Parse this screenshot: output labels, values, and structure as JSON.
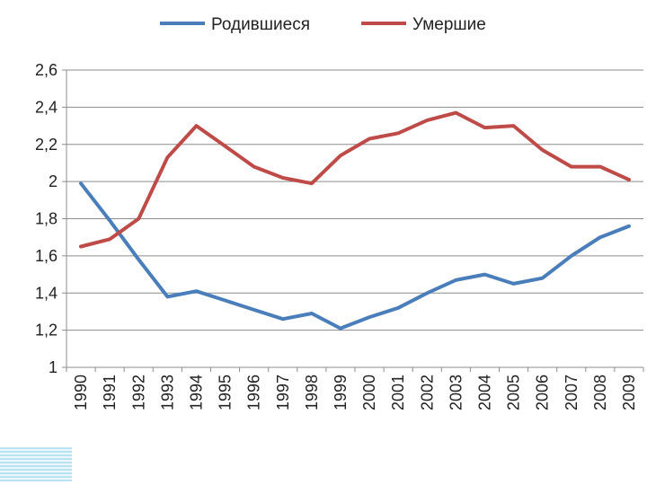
{
  "chart_data": {
    "type": "line",
    "title": "",
    "xlabel": "",
    "ylabel": "",
    "categories": [
      "1990",
      "1991",
      "1992",
      "1993",
      "1994",
      "1995",
      "1996",
      "1997",
      "1998",
      "1999",
      "2000",
      "2001",
      "2002",
      "2003",
      "2004",
      "2005",
      "2006",
      "2007",
      "2008",
      "2009"
    ],
    "ylim": [
      1,
      2.6
    ],
    "yticks": [
      1,
      1.2,
      1.4,
      1.6,
      1.8,
      2,
      2.2,
      2.4,
      2.6
    ],
    "ytick_labels": [
      "1",
      "1,2",
      "1,4",
      "1,6",
      "1,8",
      "2",
      "2,2",
      "2,4",
      "2,6"
    ],
    "grid": true,
    "legend_position": "top",
    "series": [
      {
        "name": "Родившиеся",
        "color": "#4a7ebb",
        "values": [
          1.99,
          1.79,
          1.58,
          1.38,
          1.41,
          1.36,
          1.31,
          1.26,
          1.29,
          1.21,
          1.27,
          1.32,
          1.4,
          1.47,
          1.5,
          1.45,
          1.48,
          1.6,
          1.7,
          1.76
        ]
      },
      {
        "name": "Умершие",
        "color": "#be4b48",
        "values": [
          1.65,
          1.69,
          1.8,
          2.13,
          2.3,
          2.19,
          2.08,
          2.02,
          1.99,
          2.14,
          2.23,
          2.26,
          2.33,
          2.37,
          2.29,
          2.3,
          2.17,
          2.08,
          2.08,
          2.01
        ]
      }
    ]
  }
}
